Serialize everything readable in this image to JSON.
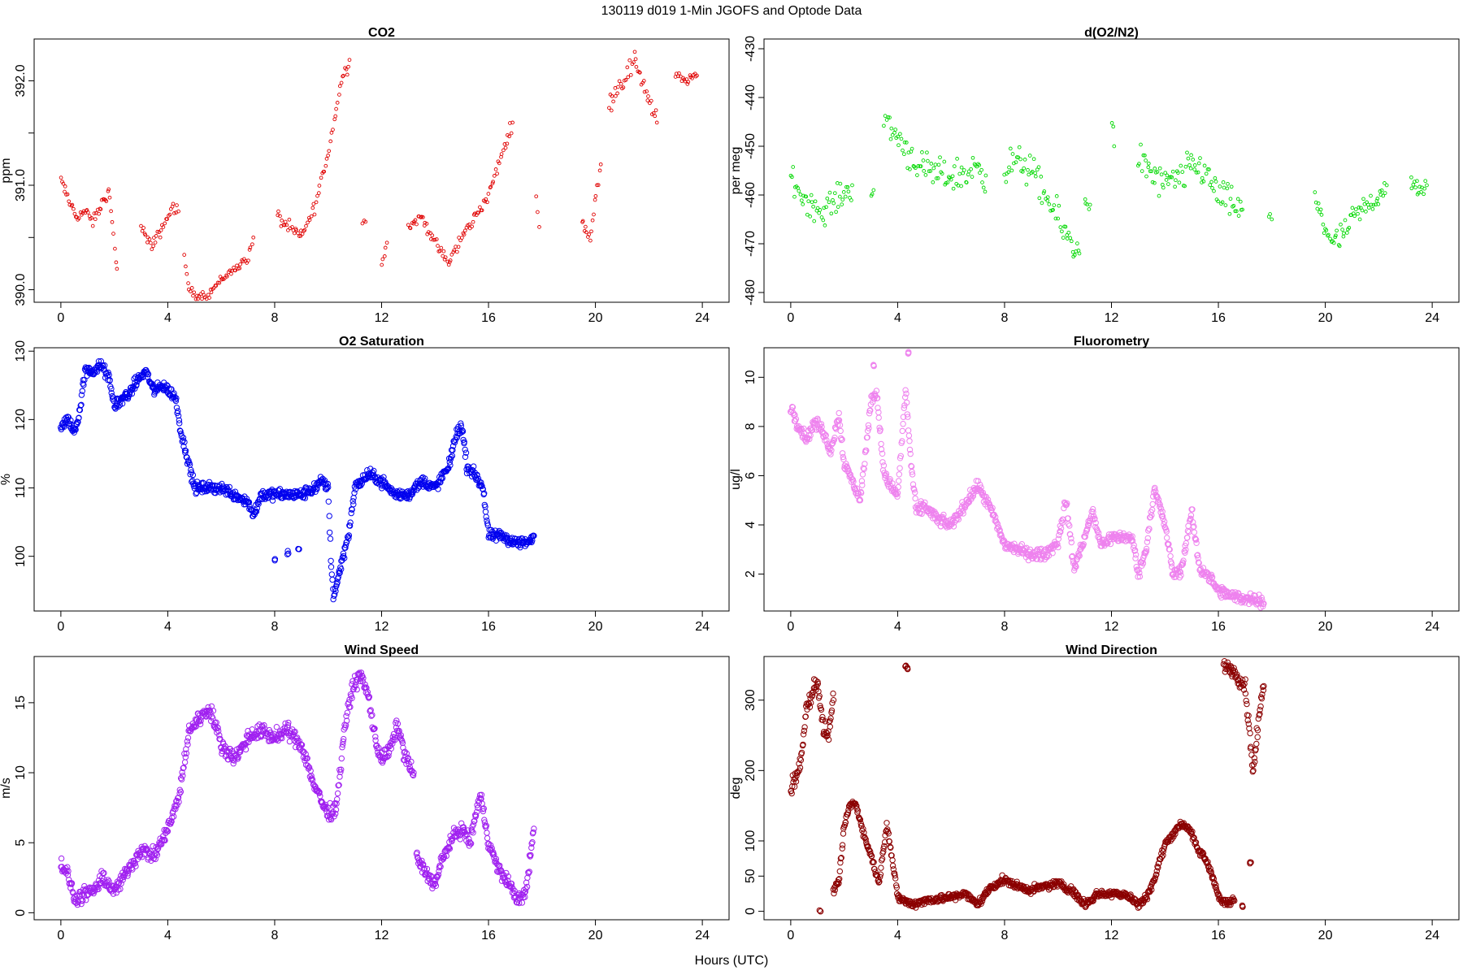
{
  "title": "130119   d019   1-Min  JGOFS and Optode Data",
  "xlabel": "Hours (UTC)",
  "chart_data": [
    {
      "type": "scatter",
      "id": "co2",
      "title": "CO2",
      "ylabel": "ppm",
      "color": "#e00000",
      "markerSize": "small",
      "xlim": [
        -1,
        25
      ],
      "ylim": [
        389.88,
        392.4
      ],
      "xticks": [
        0,
        4,
        8,
        12,
        16,
        20,
        24
      ],
      "yticks": [
        390.0,
        390.5,
        391.0,
        391.5,
        392.0
      ],
      "ytick_labels": [
        "390.0",
        "",
        "391.0",
        "",
        "392.0"
      ],
      "segments": [
        {
          "x": [
            0.0,
            0.3,
            0.6,
            0.9,
            1.2,
            1.5,
            1.8,
            2.1
          ],
          "y": [
            391.05,
            390.85,
            390.7,
            390.75,
            390.65,
            390.8,
            390.95,
            390.2
          ],
          "jitter": 0.08
        },
        {
          "x": [
            3.0,
            3.4,
            3.8,
            4.2,
            4.4
          ],
          "y": [
            390.6,
            390.4,
            390.6,
            390.8,
            390.75
          ],
          "jitter": 0.08
        },
        {
          "x": [
            4.6,
            4.8,
            5.0,
            5.5,
            6.0,
            6.5,
            7.0,
            7.2
          ],
          "y": [
            390.3,
            390.0,
            389.95,
            389.95,
            390.1,
            390.2,
            390.3,
            390.5
          ],
          "jitter": 0.06
        },
        {
          "x": [
            8.1,
            8.5,
            9.0,
            9.5,
            10.0,
            10.5,
            10.8
          ],
          "y": [
            390.7,
            390.6,
            390.5,
            390.8,
            391.3,
            392.0,
            392.2
          ],
          "jitter": 0.1
        },
        {
          "x": [
            11.3,
            11.4
          ],
          "y": [
            390.65,
            390.65
          ],
          "jitter": 0.03
        },
        {
          "x": [
            12.0,
            12.2
          ],
          "y": [
            390.25,
            390.45
          ],
          "jitter": 0.04
        },
        {
          "x": [
            13.0,
            13.5,
            14.0,
            14.5,
            15.0,
            15.5,
            16.0,
            16.5,
            16.9
          ],
          "y": [
            390.6,
            390.7,
            390.45,
            390.25,
            390.5,
            390.7,
            390.9,
            391.3,
            391.6
          ],
          "jitter": 0.08
        },
        {
          "x": [
            17.8,
            17.9
          ],
          "y": [
            390.9,
            390.6
          ],
          "jitter": 0.05
        },
        {
          "x": [
            19.5,
            19.8,
            20.2
          ],
          "y": [
            390.65,
            390.5,
            391.2
          ],
          "jitter": 0.08
        },
        {
          "x": [
            20.5,
            21.0,
            21.5,
            21.9,
            22.3
          ],
          "y": [
            391.8,
            392.0,
            392.2,
            391.9,
            391.6
          ],
          "jitter": 0.15
        },
        {
          "x": [
            23.0,
            23.4,
            23.8
          ],
          "y": [
            392.05,
            392.0,
            392.05
          ],
          "jitter": 0.06
        }
      ]
    },
    {
      "type": "scatter",
      "id": "do2n2",
      "title": "d(O2/N2)",
      "ylabel": "per meg",
      "color": "#00d800",
      "markerSize": "small",
      "xlim": [
        -1,
        25
      ],
      "ylim": [
        -482,
        -428
      ],
      "xticks": [
        0,
        4,
        8,
        12,
        16,
        20,
        24
      ],
      "yticks": [
        -480,
        -470,
        -460,
        -450,
        -440,
        -430
      ],
      "ytick_labels": [
        "-480",
        "-470",
        "-460",
        "-450",
        "-440",
        "-430"
      ],
      "segments": [
        {
          "x": [
            0.0,
            0.4,
            0.8,
            1.2,
            1.6,
            2.0,
            2.3
          ],
          "y": [
            -456,
            -460,
            -462,
            -464,
            -461,
            -460,
            -458
          ],
          "jitter": 4
        },
        {
          "x": [
            3.0,
            3.1
          ],
          "y": [
            -460,
            -459
          ],
          "jitter": 2
        },
        {
          "x": [
            3.5,
            4.0,
            4.5,
            5.0,
            5.5,
            6.0,
            6.5,
            7.0,
            7.3
          ],
          "y": [
            -445,
            -448,
            -452,
            -455,
            -456,
            -456,
            -456,
            -454,
            -456
          ],
          "jitter": 5
        },
        {
          "x": [
            8.0,
            8.5,
            9.0,
            9.5,
            10.0,
            10.5,
            10.8
          ],
          "y": [
            -455,
            -453,
            -455,
            -460,
            -465,
            -470,
            -472
          ],
          "jitter": 5
        },
        {
          "x": [
            11.0,
            11.2
          ],
          "y": [
            -460,
            -462
          ],
          "jitter": 3
        },
        {
          "x": [
            12.0,
            12.1
          ],
          "y": [
            -445,
            -450
          ],
          "jitter": 3
        },
        {
          "x": [
            13.0,
            13.5,
            14.0,
            14.5,
            15.0,
            15.5,
            16.0,
            16.5,
            16.9
          ],
          "y": [
            -452,
            -456,
            -458,
            -457,
            -454,
            -455,
            -460,
            -462,
            -463
          ],
          "jitter": 5
        },
        {
          "x": [
            17.9,
            18.0
          ],
          "y": [
            -465,
            -465
          ],
          "jitter": 2
        },
        {
          "x": [
            19.6,
            20.0,
            20.4,
            20.8,
            21.2,
            21.6,
            22.0,
            22.3
          ],
          "y": [
            -460,
            -467,
            -470,
            -467,
            -464,
            -462,
            -460,
            -458
          ],
          "jitter": 4
        },
        {
          "x": [
            23.2,
            23.5,
            23.8
          ],
          "y": [
            -457,
            -460,
            -458
          ],
          "jitter": 3
        }
      ]
    },
    {
      "type": "scatter",
      "id": "o2sat",
      "title": "O2 Saturation",
      "ylabel": "%",
      "color": "#0000ee",
      "markerSize": "large",
      "xlim": [
        -1,
        25
      ],
      "ylim": [
        92,
        130.5
      ],
      "xticks": [
        0,
        4,
        8,
        12,
        16,
        20,
        24
      ],
      "yticks": [
        100,
        110,
        120,
        130
      ],
      "ytick_labels": [
        "100",
        "110",
        "120",
        "130"
      ],
      "segments": [
        {
          "x": [
            0.0,
            0.3,
            0.5,
            0.7,
            0.9,
            1.2,
            1.5,
            1.8,
            2.0,
            2.3,
            2.6,
            2.9,
            3.2,
            3.5,
            3.8,
            4.1,
            4.3,
            4.5,
            4.7,
            5.0,
            5.5,
            6.0,
            6.5,
            7.0,
            7.2,
            7.5,
            8.0,
            8.5,
            9.0,
            9.5,
            9.8,
            10.0,
            10.1,
            10.2,
            10.5,
            10.8,
            11.0,
            11.5,
            12.0,
            12.5,
            13.0,
            13.5,
            14.0,
            14.5,
            14.8,
            15.0,
            15.2,
            15.5,
            15.8,
            16.0,
            16.5,
            17.0,
            17.5,
            17.7
          ],
          "y": [
            119,
            120,
            118,
            121,
            127,
            127,
            128,
            126,
            122,
            123,
            124,
            126,
            127,
            124,
            125,
            124,
            123,
            118,
            115,
            110,
            110,
            110,
            109,
            108,
            106,
            109,
            109,
            109,
            109,
            110,
            111,
            110,
            100,
            94,
            99,
            104,
            110,
            112,
            111,
            109,
            109,
            111,
            110,
            113,
            118,
            119,
            113,
            112,
            110,
            103,
            103,
            102,
            102,
            103
          ],
          "jitter": 1.2
        }
      ],
      "spikes": [
        {
          "x": 8.0,
          "y": 99.5
        },
        {
          "x": 8.5,
          "y": 100.5
        },
        {
          "x": 8.9,
          "y": 101
        }
      ]
    },
    {
      "type": "scatter",
      "id": "fluor",
      "title": "Fluorometry",
      "ylabel": "ug/l",
      "color": "#ee82ee",
      "markerSize": "large",
      "xlim": [
        -1,
        25
      ],
      "ylim": [
        0.5,
        11.2
      ],
      "xticks": [
        0,
        4,
        8,
        12,
        16,
        20,
        24
      ],
      "yticks": [
        2,
        4,
        6,
        8,
        10
      ],
      "ytick_labels": [
        "2",
        "4",
        "6",
        "8",
        "10"
      ],
      "segments": [
        {
          "x": [
            0.0,
            0.3,
            0.6,
            0.9,
            1.2,
            1.5,
            1.8,
            2.0,
            2.3,
            2.6,
            2.8,
            3.0,
            3.2,
            3.5,
            3.8,
            4.0,
            4.3,
            4.5,
            4.7,
            5.0,
            5.5,
            6.0,
            6.5,
            7.0,
            7.5,
            8.0,
            8.5,
            9.0,
            9.5,
            10.0,
            10.3,
            10.6,
            11.0,
            11.3,
            11.6,
            12.0,
            12.5,
            12.8,
            13.0,
            13.3,
            13.6,
            14.0,
            14.3,
            14.6,
            15.0,
            15.3,
            15.6,
            16.0,
            16.5,
            17.0,
            17.5,
            17.7
          ],
          "y": [
            8.8,
            8.0,
            7.5,
            8.2,
            7.8,
            7.0,
            8.5,
            6.5,
            5.8,
            5.0,
            7.0,
            9.0,
            9.5,
            6.0,
            5.5,
            5.2,
            9.5,
            6.5,
            4.5,
            4.8,
            4.2,
            4.0,
            4.8,
            5.6,
            4.6,
            3.2,
            3.0,
            2.8,
            2.8,
            3.3,
            5.0,
            2.2,
            3.5,
            4.5,
            3.2,
            3.5,
            3.5,
            3.4,
            2.0,
            3.0,
            5.5,
            4.0,
            2.0,
            2.1,
            4.5,
            2.2,
            2.0,
            1.3,
            1.1,
            1.0,
            1.0,
            0.8
          ],
          "jitter": 0.35
        }
      ],
      "spikes": [
        {
          "x": 4.4,
          "y": 11.0
        },
        {
          "x": 3.1,
          "y": 10.5
        }
      ]
    },
    {
      "type": "scatter",
      "id": "wspd",
      "title": "Wind Speed",
      "ylabel": "m/s",
      "color": "#a020f0",
      "markerSize": "large",
      "xlim": [
        -1,
        25
      ],
      "ylim": [
        -0.5,
        18.3
      ],
      "xticks": [
        0,
        4,
        8,
        12,
        16,
        20,
        24
      ],
      "yticks": [
        0,
        5,
        10,
        15
      ],
      "ytick_labels": [
        "0",
        "5",
        "10",
        "15"
      ],
      "segments": [
        {
          "x": [
            0.0,
            0.3,
            0.5,
            0.8,
            1.2,
            1.6,
            2.0,
            2.5,
            3.0,
            3.5,
            4.0,
            4.4,
            4.8,
            5.2,
            5.6,
            6.0,
            6.5,
            7.0,
            7.5,
            8.0,
            8.5,
            9.0,
            9.5,
            10.0,
            10.3,
            10.6,
            10.9,
            11.2,
            11.5,
            11.8,
            12.0,
            12.3,
            12.6,
            12.9,
            13.2
          ],
          "y": [
            3.5,
            2.5,
            1.0,
            1.2,
            1.5,
            2.5,
            1.5,
            3.0,
            4.5,
            4.0,
            6.0,
            8.0,
            13.0,
            14.0,
            14.5,
            12.0,
            11.0,
            12.5,
            13.0,
            12.5,
            13.0,
            12.0,
            9.0,
            7.0,
            7.5,
            13.0,
            16.0,
            17.0,
            15.5,
            12.0,
            11.0,
            11.5,
            13.5,
            11.0,
            10.0
          ],
          "jitter": 0.8
        },
        {
          "x": [
            13.3,
            13.6,
            14.0,
            14.3,
            14.7,
            15.0,
            15.3,
            15.7,
            16.0,
            16.4,
            16.8,
            17.1,
            17.4,
            17.7
          ],
          "y": [
            4.0,
            3.0,
            2.0,
            4.0,
            5.5,
            6.0,
            5.0,
            8.5,
            5.0,
            3.0,
            2.0,
            0.8,
            1.5,
            6.0
          ],
          "jitter": 0.7
        }
      ]
    },
    {
      "type": "scatter",
      "id": "wdir",
      "title": "Wind Direction",
      "ylabel": "deg",
      "color": "#8b0000",
      "markerSize": "large",
      "xlim": [
        -1,
        25
      ],
      "ylim": [
        -12,
        362
      ],
      "xticks": [
        0,
        4,
        8,
        12,
        16,
        20,
        24
      ],
      "yticks": [
        0,
        50,
        100,
        200,
        300
      ],
      "ytick_labels": [
        "0",
        "50",
        "100",
        "200",
        "300"
      ],
      "segments": [
        {
          "x": [
            0.0,
            0.2,
            0.4,
            0.6,
            0.8,
            1.0,
            1.2,
            1.4,
            1.6
          ],
          "y": [
            175,
            190,
            220,
            290,
            310,
            330,
            260,
            250,
            300
          ],
          "jitter": 18
        },
        {
          "x": [
            1.6,
            1.8,
            2.0,
            2.2,
            2.4,
            2.6,
            2.8,
            3.0,
            3.3,
            3.6,
            4.0,
            4.5,
            5.0,
            5.5,
            6.0,
            6.5,
            7.0,
            7.5,
            8.0,
            8.5,
            9.0,
            9.5,
            10.0,
            10.5,
            11.0,
            11.5,
            12.0,
            12.5,
            13.0,
            13.3,
            13.6,
            14.0,
            14.3,
            14.6,
            14.9,
            15.2,
            15.5,
            15.8,
            16.0,
            16.3,
            16.6
          ],
          "y": [
            30,
            40,
            120,
            150,
            155,
            130,
            100,
            80,
            40,
            125,
            20,
            10,
            15,
            18,
            20,
            25,
            10,
            35,
            45,
            35,
            30,
            35,
            40,
            30,
            10,
            25,
            25,
            25,
            10,
            20,
            45,
            95,
            110,
            125,
            118,
            90,
            75,
            50,
            20,
            10,
            15
          ],
          "jitter": 8
        },
        {
          "x": [
            16.2,
            16.5,
            16.8,
            17.0,
            17.3,
            17.6,
            17.7
          ],
          "y": [
            350,
            345,
            330,
            320,
            200,
            300,
            320
          ],
          "jitter": 15
        }
      ],
      "spikes": [
        {
          "x": 1.1,
          "y": 2
        },
        {
          "x": 4.3,
          "y": 350
        },
        {
          "x": 4.35,
          "y": 345
        },
        {
          "x": 17.2,
          "y": 70
        },
        {
          "x": 16.9,
          "y": 8
        }
      ]
    }
  ]
}
